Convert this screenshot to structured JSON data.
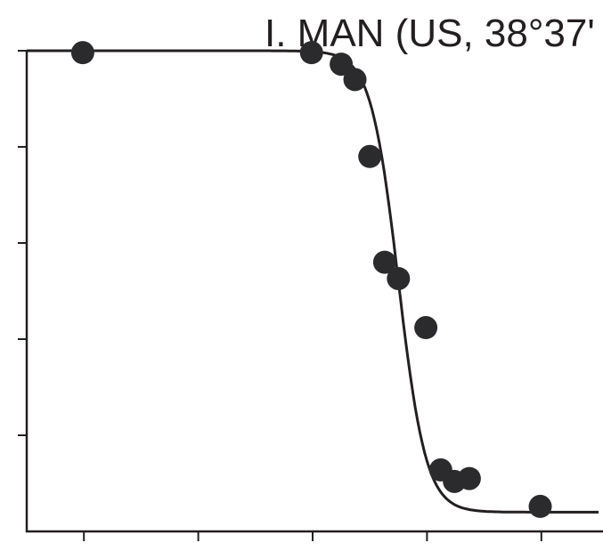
{
  "chart_data": {
    "type": "scatter",
    "title": "I. MAN (US, 38°37'",
    "xlabel": "",
    "ylabel": "",
    "xlim": [
      0,
      5
    ],
    "ylim": [
      0,
      5
    ],
    "x_ticks": [
      0.5,
      1.5,
      2.5,
      3.5,
      4.5
    ],
    "y_ticks": [
      1,
      2,
      3,
      4,
      5
    ],
    "grid": false,
    "legend": "none",
    "colors": {
      "marker": "#2b2b2e",
      "line": "#231f20",
      "background": "#ffffff"
    },
    "series": [
      {
        "type": "scatter",
        "x": [
          0.49,
          2.49,
          2.75,
          2.87,
          3.0,
          3.13,
          3.25,
          3.49,
          3.62,
          3.74,
          3.87,
          4.49
        ],
        "y": [
          4.98,
          4.98,
          4.86,
          4.7,
          3.9,
          2.8,
          2.63,
          2.12,
          0.64,
          0.52,
          0.55,
          0.26
        ]
      },
      {
        "type": "line",
        "model": "logistic",
        "low": 0.2,
        "high": 5.0,
        "midpoint": 3.25,
        "scale": 0.12,
        "x_range": [
          0,
          5
        ]
      }
    ]
  }
}
